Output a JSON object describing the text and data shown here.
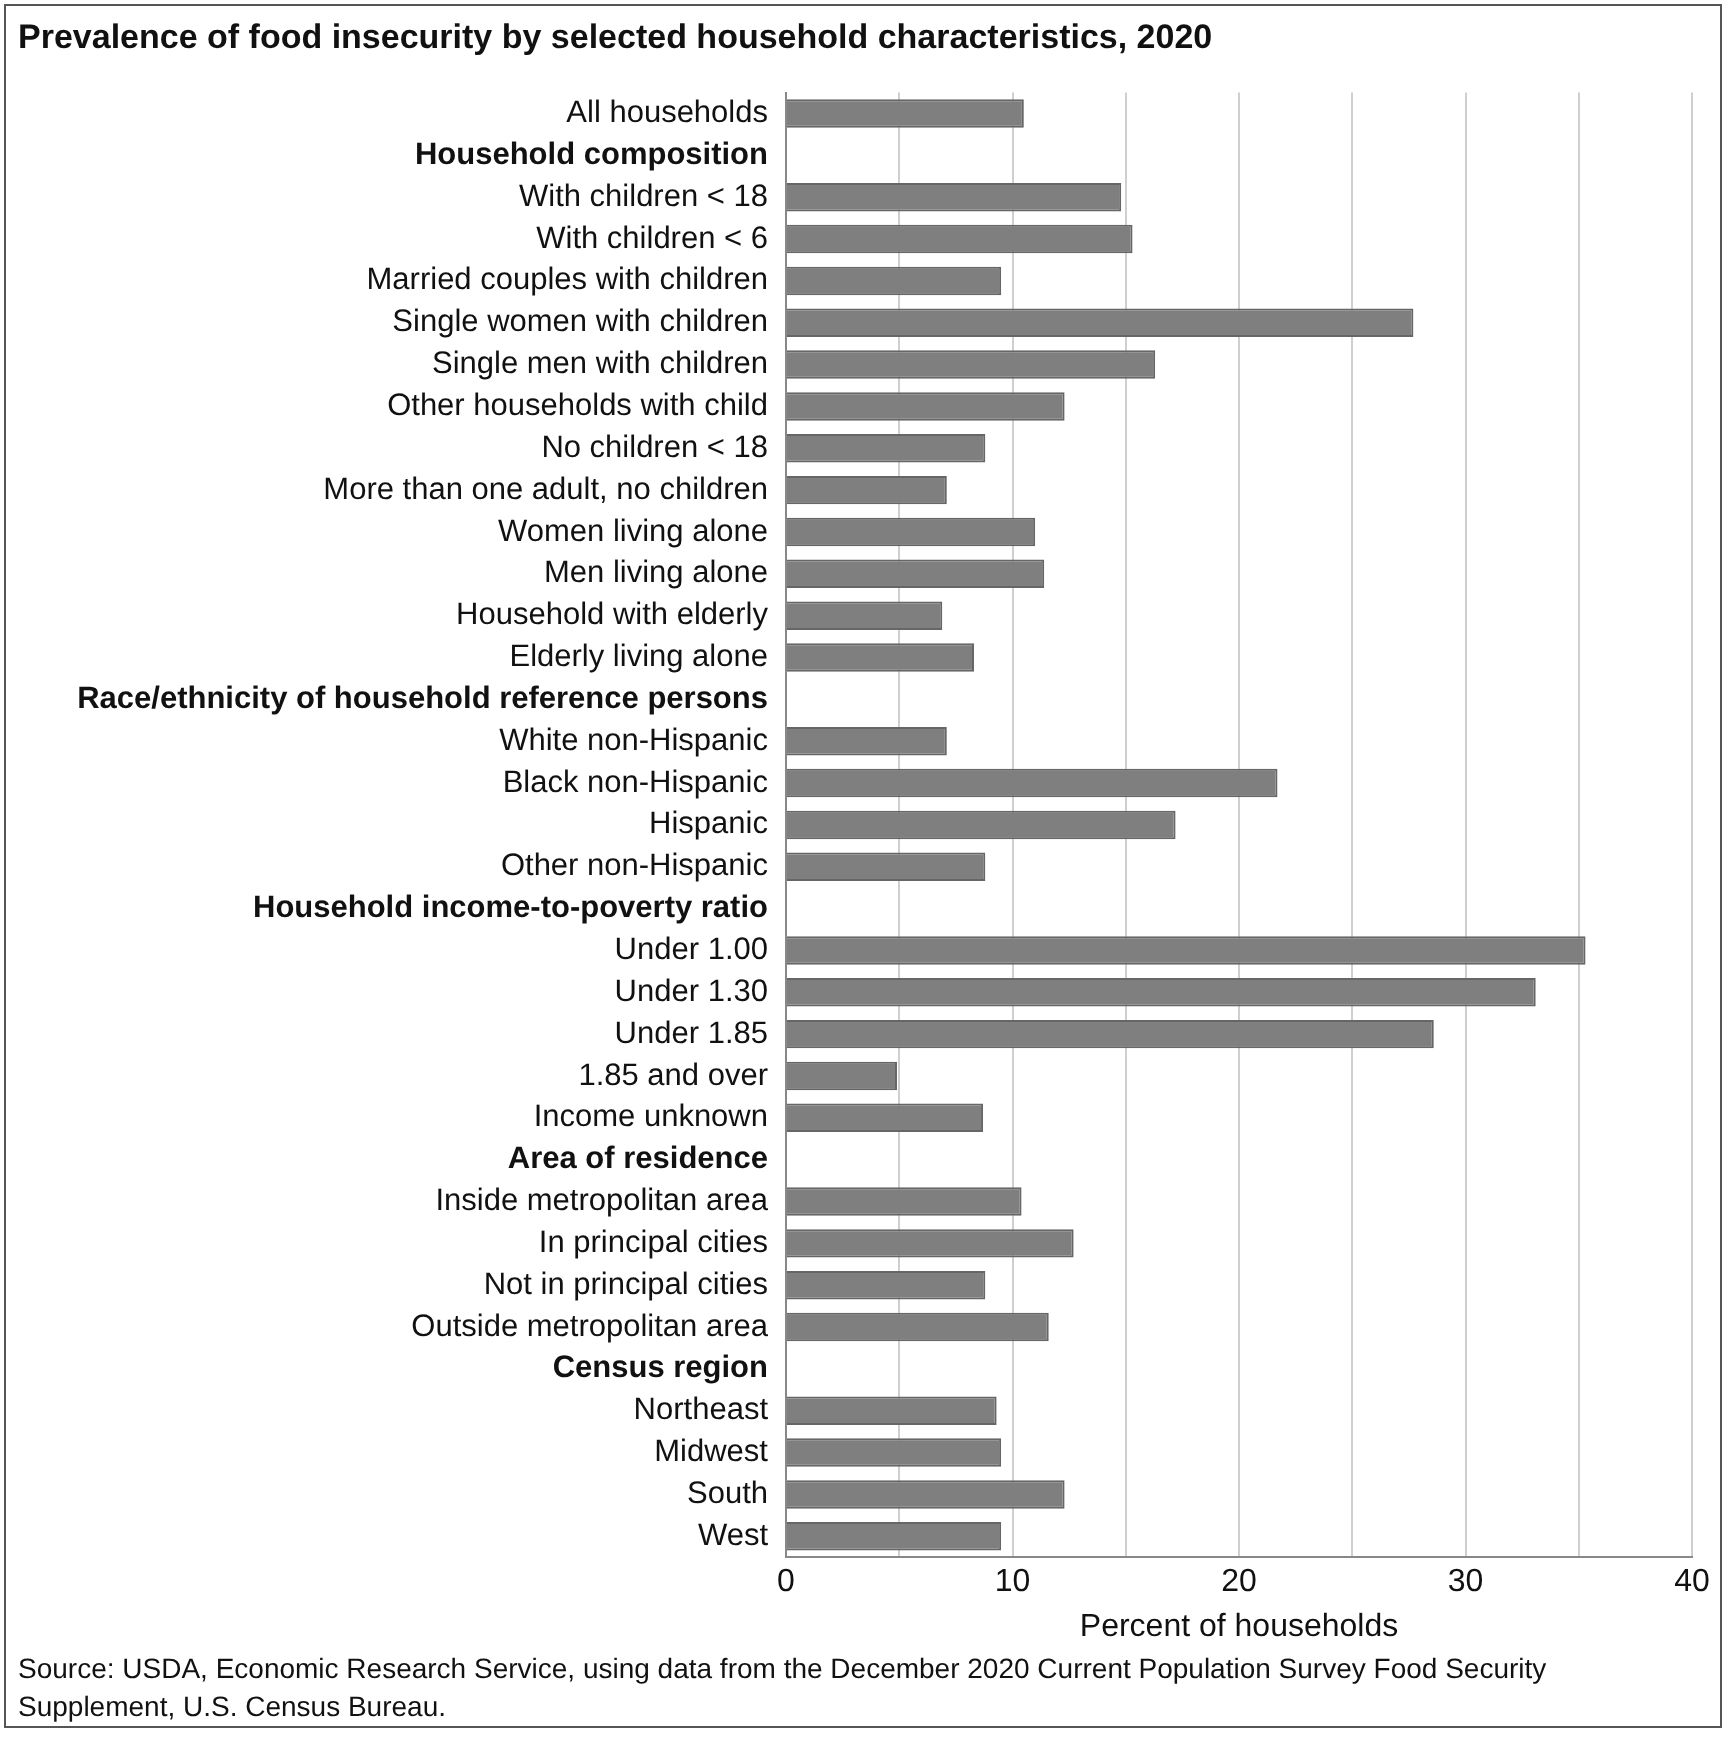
{
  "chart_data": {
    "type": "bar",
    "orientation": "horizontal",
    "title": "Prevalence of food insecurity by selected household characteristics, 2020",
    "xlabel": "Percent of households",
    "categories": [
      "All households",
      "Household composition",
      "With children < 18",
      "With children < 6",
      "Married couples with children",
      "Single women with children",
      "Single men with children",
      "Other households with child",
      "No children < 18",
      "More than one adult, no children",
      "Women living alone",
      "Men living alone",
      "Household with elderly",
      "Elderly living alone",
      "Race/ethnicity of household reference persons",
      "White non-Hispanic",
      "Black non-Hispanic",
      "Hispanic",
      "Other non-Hispanic",
      "Household income-to-poverty ratio",
      "Under 1.00",
      "Under 1.30",
      "Under 1.85",
      "1.85 and over",
      "Income unknown",
      "Area of residence",
      "Inside metropolitan area",
      "In principal cities",
      "Not in principal cities",
      "Outside metropolitan area",
      "Census region",
      "Northeast",
      "Midwest",
      "South",
      "West"
    ],
    "values": [
      10.5,
      null,
      14.8,
      15.3,
      9.5,
      27.7,
      16.3,
      12.3,
      8.8,
      7.1,
      11.0,
      11.4,
      6.9,
      8.3,
      null,
      7.1,
      21.7,
      17.2,
      8.8,
      null,
      35.3,
      33.1,
      28.6,
      4.9,
      8.7,
      null,
      10.4,
      12.7,
      8.8,
      11.6,
      null,
      9.3,
      9.5,
      12.3,
      9.5
    ],
    "color": "#7f7f7f",
    "xlim": [
      0,
      40
    ],
    "xticks": [
      0,
      {
        "value": 5,
        "label": null
      },
      10,
      {
        "value": 15,
        "label": null
      },
      20,
      {
        "value": 25,
        "label": null
      },
      30,
      {
        "value": 35,
        "label": null
      },
      40
    ],
    "grid": "x",
    "annotations": [
      "Source: USDA, Economic Research Service, using data from the December 2020 Current Population Survey Food Security Supplement, U.S. Census Bureau."
    ]
  }
}
